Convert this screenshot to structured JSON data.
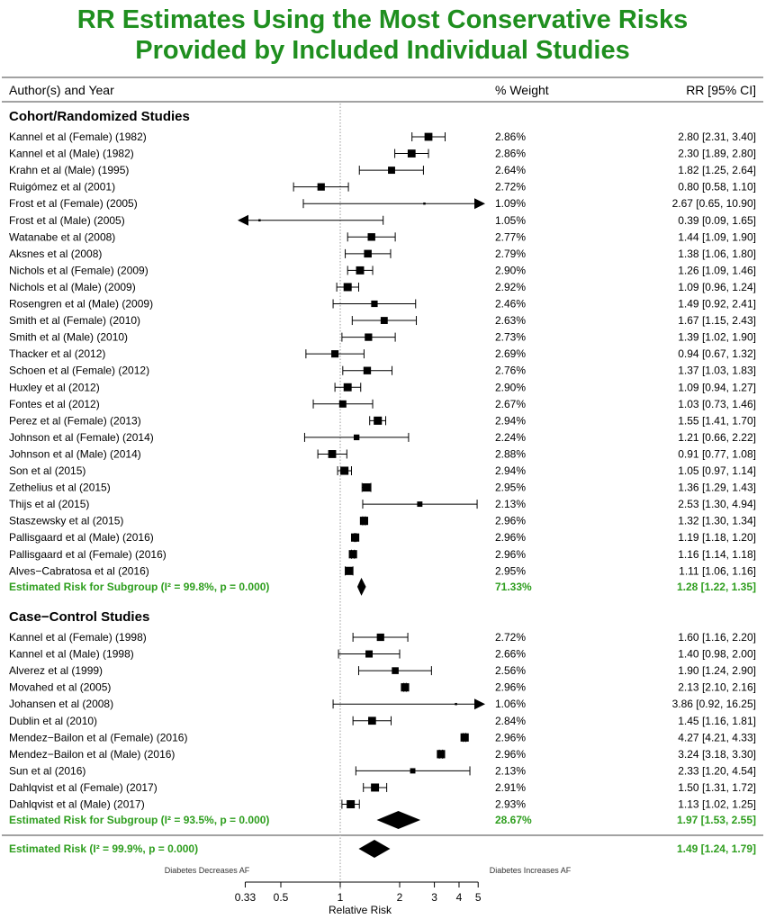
{
  "title_line1": "RR Estimates Using the Most Conservative Risks",
  "title_line2": "Provided by Included Individual Studies",
  "header": {
    "author": "Author(s) and Year",
    "weight": "% Weight",
    "rr": "RR [95% CI]"
  },
  "axis": {
    "label": "Relative Risk",
    "left_note": "Diabetes Decreases AF",
    "right_note": "Diabetes Increases AF",
    "ticks": [
      0.33,
      0.5,
      1,
      2,
      3,
      4,
      5
    ],
    "tick_labels": [
      "0.33",
      "0.5",
      "1",
      "2",
      "3",
      "4",
      "5"
    ]
  },
  "colors": {
    "title": "#1f8f1f",
    "summary": "#2e9e1e"
  },
  "chart_data": {
    "type": "forest",
    "x_scale": "log",
    "xlim": [
      0.33,
      5
    ],
    "reference_line": 1,
    "groups": [
      {
        "name": "Cohort/Randomized Studies",
        "studies": [
          {
            "label": "Kannel et al (Female) (1982)",
            "weight": "2.86%",
            "rr_text": "2.80 [2.31,  3.40]",
            "rr": 2.8,
            "lo": 2.31,
            "hi": 3.4
          },
          {
            "label": "Kannel et al (Male) (1982)",
            "weight": "2.86%",
            "rr_text": "2.30 [1.89,  2.80]",
            "rr": 2.3,
            "lo": 1.89,
            "hi": 2.8
          },
          {
            "label": "Krahn et al (Male) (1995)",
            "weight": "2.64%",
            "rr_text": "1.82 [1.25,  2.64]",
            "rr": 1.82,
            "lo": 1.25,
            "hi": 2.64
          },
          {
            "label": "Ruigómez et al (2001)",
            "weight": "2.72%",
            "rr_text": "0.80 [0.58,  1.10]",
            "rr": 0.8,
            "lo": 0.58,
            "hi": 1.1
          },
          {
            "label": "Frost et al (Female) (2005)",
            "weight": "1.09%",
            "rr_text": "2.67 [0.65, 10.90]",
            "rr": 2.67,
            "lo": 0.65,
            "hi": 10.9
          },
          {
            "label": "Frost et al (Male) (2005)",
            "weight": "1.05%",
            "rr_text": "0.39 [0.09,  1.65]",
            "rr": 0.39,
            "lo": 0.09,
            "hi": 1.65
          },
          {
            "label": "Watanabe et al (2008)",
            "weight": "2.77%",
            "rr_text": "1.44 [1.09,  1.90]",
            "rr": 1.44,
            "lo": 1.09,
            "hi": 1.9
          },
          {
            "label": "Aksnes et al (2008)",
            "weight": "2.79%",
            "rr_text": "1.38 [1.06,  1.80]",
            "rr": 1.38,
            "lo": 1.06,
            "hi": 1.8
          },
          {
            "label": "Nichols et al (Female) (2009)",
            "weight": "2.90%",
            "rr_text": "1.26 [1.09,  1.46]",
            "rr": 1.26,
            "lo": 1.09,
            "hi": 1.46
          },
          {
            "label": "Nichols et al (Male) (2009)",
            "weight": "2.92%",
            "rr_text": "1.09 [0.96,  1.24]",
            "rr": 1.09,
            "lo": 0.96,
            "hi": 1.24
          },
          {
            "label": "Rosengren et al (Male) (2009)",
            "weight": "2.46%",
            "rr_text": "1.49 [0.92,  2.41]",
            "rr": 1.49,
            "lo": 0.92,
            "hi": 2.41
          },
          {
            "label": "Smith et al (Female) (2010)",
            "weight": "2.63%",
            "rr_text": "1.67 [1.15,  2.43]",
            "rr": 1.67,
            "lo": 1.15,
            "hi": 2.43
          },
          {
            "label": "Smith et al (Male) (2010)",
            "weight": "2.73%",
            "rr_text": "1.39 [1.02,  1.90]",
            "rr": 1.39,
            "lo": 1.02,
            "hi": 1.9
          },
          {
            "label": "Thacker et al (2012)",
            "weight": "2.69%",
            "rr_text": "0.94 [0.67,  1.32]",
            "rr": 0.94,
            "lo": 0.67,
            "hi": 1.32
          },
          {
            "label": "Schoen et al (Female) (2012)",
            "weight": "2.76%",
            "rr_text": "1.37 [1.03,  1.83]",
            "rr": 1.37,
            "lo": 1.03,
            "hi": 1.83
          },
          {
            "label": "Huxley et al (2012)",
            "weight": "2.90%",
            "rr_text": "1.09 [0.94,  1.27]",
            "rr": 1.09,
            "lo": 0.94,
            "hi": 1.27
          },
          {
            "label": "Fontes et al (2012)",
            "weight": "2.67%",
            "rr_text": "1.03 [0.73,  1.46]",
            "rr": 1.03,
            "lo": 0.73,
            "hi": 1.46
          },
          {
            "label": "Perez et al (Female) (2013)",
            "weight": "2.94%",
            "rr_text": "1.55 [1.41,  1.70]",
            "rr": 1.55,
            "lo": 1.41,
            "hi": 1.7
          },
          {
            "label": "Johnson et al (Female) (2014)",
            "weight": "2.24%",
            "rr_text": "1.21 [0.66,  2.22]",
            "rr": 1.21,
            "lo": 0.66,
            "hi": 2.22
          },
          {
            "label": "Johnson et al (Male) (2014)",
            "weight": "2.88%",
            "rr_text": "0.91 [0.77,  1.08]",
            "rr": 0.91,
            "lo": 0.77,
            "hi": 1.08
          },
          {
            "label": "Son et al (2015)",
            "weight": "2.94%",
            "rr_text": "1.05 [0.97,  1.14]",
            "rr": 1.05,
            "lo": 0.97,
            "hi": 1.14
          },
          {
            "label": "Zethelius et al (2015)",
            "weight": "2.95%",
            "rr_text": "1.36 [1.29,  1.43]",
            "rr": 1.36,
            "lo": 1.29,
            "hi": 1.43
          },
          {
            "label": "Thijs et al (2015)",
            "weight": "2.13%",
            "rr_text": "2.53 [1.30,  4.94]",
            "rr": 2.53,
            "lo": 1.3,
            "hi": 4.94
          },
          {
            "label": "Staszewsky et al (2015)",
            "weight": "2.96%",
            "rr_text": "1.32 [1.30,  1.34]",
            "rr": 1.32,
            "lo": 1.3,
            "hi": 1.34
          },
          {
            "label": "Pallisgaard et al (Male) (2016)",
            "weight": "2.96%",
            "rr_text": "1.19 [1.18,  1.20]",
            "rr": 1.19,
            "lo": 1.18,
            "hi": 1.2
          },
          {
            "label": "Pallisgaard et al (Female) (2016)",
            "weight": "2.96%",
            "rr_text": "1.16 [1.14,  1.18]",
            "rr": 1.16,
            "lo": 1.14,
            "hi": 1.18
          },
          {
            "label": "Alves−Cabratosa et al (2016)",
            "weight": "2.95%",
            "rr_text": "1.11 [1.06,  1.16]",
            "rr": 1.11,
            "lo": 1.06,
            "hi": 1.16
          }
        ],
        "summary": {
          "label": "Estimated Risk for Subgroup (I² = 99.8%, p = 0.000)",
          "weight": "71.33%",
          "rr_text": "1.28 [1.22, 1.35]",
          "rr": 1.28,
          "lo": 1.22,
          "hi": 1.35
        }
      },
      {
        "name": "Case−Control Studies",
        "studies": [
          {
            "label": "Kannel et al (Female) (1998)",
            "weight": "2.72%",
            "rr_text": "1.60 [1.16,  2.20]",
            "rr": 1.6,
            "lo": 1.16,
            "hi": 2.2
          },
          {
            "label": "Kannel et al (Male) (1998)",
            "weight": "2.66%",
            "rr_text": "1.40 [0.98,  2.00]",
            "rr": 1.4,
            "lo": 0.98,
            "hi": 2.0
          },
          {
            "label": "Alverez et al (1999)",
            "weight": "2.56%",
            "rr_text": "1.90 [1.24,  2.90]",
            "rr": 1.9,
            "lo": 1.24,
            "hi": 2.9
          },
          {
            "label": "Movahed et al (2005)",
            "weight": "2.96%",
            "rr_text": "2.13 [2.10,  2.16]",
            "rr": 2.13,
            "lo": 2.1,
            "hi": 2.16
          },
          {
            "label": "Johansen et al (2008)",
            "weight": "1.06%",
            "rr_text": "3.86 [0.92, 16.25]",
            "rr": 3.86,
            "lo": 0.92,
            "hi": 16.25
          },
          {
            "label": "Dublin et al (2010)",
            "weight": "2.84%",
            "rr_text": "1.45 [1.16,  1.81]",
            "rr": 1.45,
            "lo": 1.16,
            "hi": 1.81
          },
          {
            "label": "Mendez−Bailon et al (Female) (2016)",
            "weight": "2.96%",
            "rr_text": "4.27 [4.21,  4.33]",
            "rr": 4.27,
            "lo": 4.21,
            "hi": 4.33
          },
          {
            "label": "Mendez−Bailon et al (Male) (2016)",
            "weight": "2.96%",
            "rr_text": "3.24 [3.18,  3.30]",
            "rr": 3.24,
            "lo": 3.18,
            "hi": 3.3
          },
          {
            "label": "Sun et al (2016)",
            "weight": "2.13%",
            "rr_text": "2.33 [1.20,  4.54]",
            "rr": 2.33,
            "lo": 1.2,
            "hi": 4.54
          },
          {
            "label": "Dahlqvist et al (Female) (2017)",
            "weight": "2.91%",
            "rr_text": "1.50 [1.31,  1.72]",
            "rr": 1.5,
            "lo": 1.31,
            "hi": 1.72
          },
          {
            "label": "Dahlqvist et al (Male) (2017)",
            "weight": "2.93%",
            "rr_text": "1.13 [1.02,  1.25]",
            "rr": 1.13,
            "lo": 1.02,
            "hi": 1.25
          }
        ],
        "summary": {
          "label": "Estimated Risk for Subgroup (I² = 93.5%, p = 0.000)",
          "weight": "28.67%",
          "rr_text": "1.97 [1.53, 2.55]",
          "rr": 1.97,
          "lo": 1.53,
          "hi": 2.55
        }
      }
    ],
    "overall": {
      "label": "Estimated Risk (I² = 99.9%, p = 0.000)",
      "rr_text": "1.49 [1.24, 1.79]",
      "rr": 1.49,
      "lo": 1.24,
      "hi": 1.79
    }
  }
}
